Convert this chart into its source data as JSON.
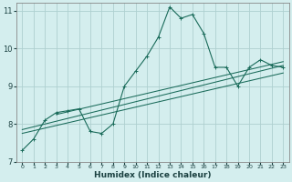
{
  "xlabel": "Humidex (Indice chaleur)",
  "bg_color": "#d4eeee",
  "grid_color": "#aed0d0",
  "line_color": "#1a6b5a",
  "xlim": [
    -0.5,
    23.5
  ],
  "ylim": [
    7,
    11.2
  ],
  "xticks": [
    0,
    1,
    2,
    3,
    4,
    5,
    6,
    7,
    8,
    9,
    10,
    11,
    12,
    13,
    14,
    15,
    16,
    17,
    18,
    19,
    20,
    21,
    22,
    23
  ],
  "yticks": [
    7,
    8,
    9,
    10,
    11
  ],
  "curve1_x": [
    0,
    1,
    2,
    3,
    4,
    5,
    6,
    7,
    8,
    9,
    10,
    11,
    12,
    13,
    14,
    15,
    16,
    17,
    18,
    19,
    20,
    21,
    22,
    23
  ],
  "curve1_y": [
    7.3,
    7.6,
    8.1,
    8.3,
    8.35,
    8.4,
    7.8,
    7.75,
    8.0,
    9.0,
    9.4,
    9.8,
    10.3,
    11.1,
    10.8,
    10.9,
    10.4,
    9.5,
    9.5,
    9.0,
    9.5,
    9.7,
    9.55,
    9.5
  ],
  "curve2_x": [
    0,
    23
  ],
  "curve2_y": [
    7.75,
    9.35
  ],
  "curve3_x": [
    0,
    23
  ],
  "curve3_y": [
    7.85,
    9.55
  ],
  "curve4_x": [
    3,
    23
  ],
  "curve4_y": [
    8.25,
    9.65
  ]
}
